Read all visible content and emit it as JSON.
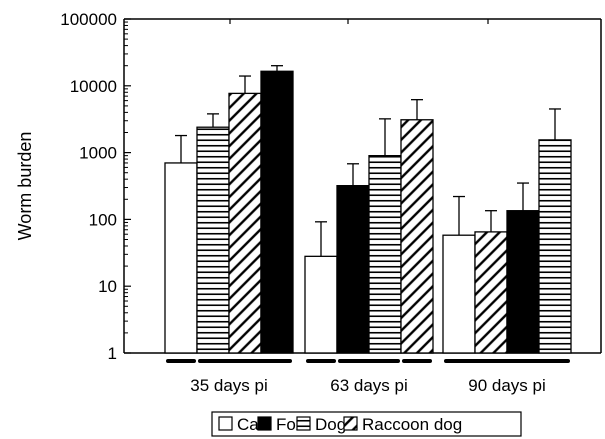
{
  "chart_data": {
    "type": "bar",
    "ylabel": "Worm burden",
    "xlabel": "",
    "yscale": "log",
    "ylim": [
      1,
      100000
    ],
    "yticks": [
      "1",
      "10",
      "100",
      "1000",
      "10000",
      "100000"
    ],
    "grid": false,
    "legend_position": "bottom",
    "legend": [
      {
        "name": "Cat",
        "pattern": "empty"
      },
      {
        "name": "Fox",
        "pattern": "solid"
      },
      {
        "name": "Dog",
        "pattern": "horizontal"
      },
      {
        "name": "Raccoon dog",
        "pattern": "diagonal"
      }
    ],
    "groups": [
      {
        "label": "35 days pi",
        "bars": [
          {
            "series": "Cat",
            "value": 700,
            "error_upper": 1800
          },
          {
            "series": "Dog",
            "value": 2400,
            "error_upper": 3800
          },
          {
            "series": "Raccoon dog",
            "value": 7700,
            "error_upper": 14000
          },
          {
            "series": "Fox",
            "value": 16500,
            "error_upper": 20000
          }
        ]
      },
      {
        "label": "63 days pi",
        "bars": [
          {
            "series": "Cat",
            "value": 28,
            "error_upper": 92
          },
          {
            "series": "Fox",
            "value": 320,
            "error_upper": 680
          },
          {
            "series": "Dog",
            "value": 900,
            "error_upper": 3200
          },
          {
            "series": "Raccoon dog",
            "value": 3100,
            "error_upper": 6200
          }
        ]
      },
      {
        "label": "90 days pi",
        "bars": [
          {
            "series": "Cat",
            "value": 58,
            "error_upper": 220
          },
          {
            "series": "Raccoon dog",
            "value": 65,
            "error_upper": 135
          },
          {
            "series": "Fox",
            "value": 135,
            "error_upper": 350
          },
          {
            "series": "Dog",
            "value": 1550,
            "error_upper": 4500
          }
        ]
      }
    ],
    "significance_bars": [
      {
        "group": 0,
        "from": 0,
        "to": 0
      },
      {
        "group": 0,
        "from": 1,
        "to": 3
      },
      {
        "group": 1,
        "from": 0,
        "to": 0
      },
      {
        "group": 1,
        "from": 1,
        "to": 2
      },
      {
        "group": 1,
        "from": 3,
        "to": 3
      },
      {
        "group": 2,
        "from": 0,
        "to": 3
      }
    ]
  }
}
